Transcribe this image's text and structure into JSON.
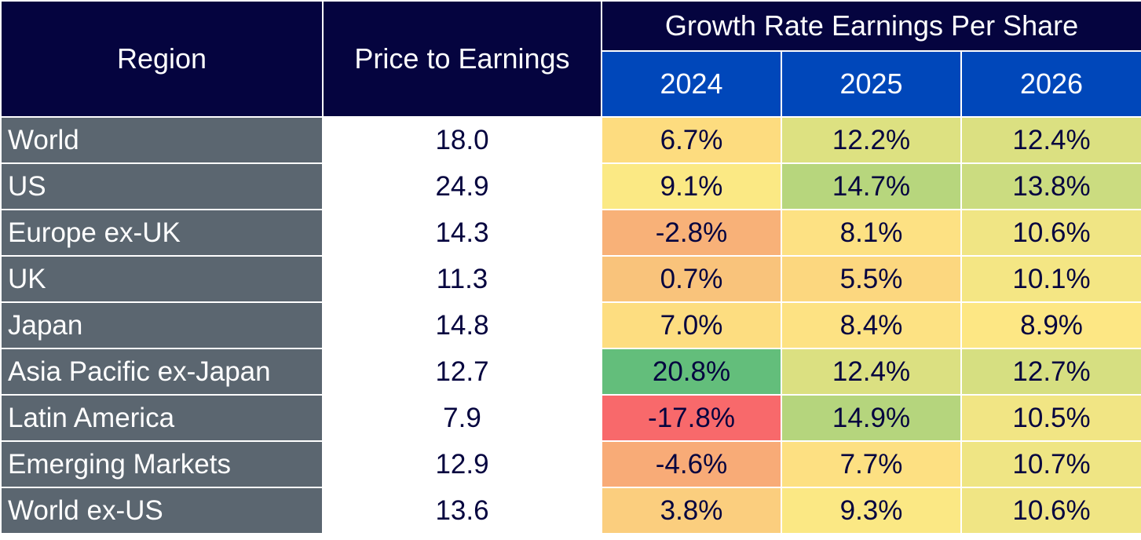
{
  "chart_data": {
    "type": "table",
    "headers": {
      "region": "Region",
      "pe": "Price to Earnings",
      "growth": "Growth Rate Earnings Per Share",
      "years": [
        "2024",
        "2025",
        "2026"
      ]
    },
    "rows": [
      {
        "region": "World",
        "pe": "18.0",
        "growth": [
          "6.7%",
          "12.2%",
          "12.4%"
        ],
        "values": [
          6.7,
          12.2,
          12.4
        ],
        "colors": [
          "#fddc7f",
          "#dde181",
          "#dbe081"
        ]
      },
      {
        "region": "US",
        "pe": "24.9",
        "growth": [
          "9.1%",
          "14.7%",
          "13.8%"
        ],
        "values": [
          9.1,
          14.7,
          13.8
        ],
        "colors": [
          "#fbe984",
          "#b7d67d",
          "#cbdc80"
        ]
      },
      {
        "region": "Europe ex-UK",
        "pe": "14.3",
        "growth": [
          "-2.8%",
          "8.1%",
          "10.6%"
        ],
        "values": [
          -2.8,
          8.1,
          10.6
        ],
        "colors": [
          "#f8b178",
          "#fde183",
          "#f0e584"
        ]
      },
      {
        "region": "UK",
        "pe": "11.3",
        "growth": [
          "0.7%",
          "5.5%",
          "10.1%"
        ],
        "values": [
          0.7,
          5.5,
          10.1
        ],
        "colors": [
          "#f9c37b",
          "#fcd77f",
          "#f4e684"
        ]
      },
      {
        "region": "Japan",
        "pe": "14.8",
        "growth": [
          "7.0%",
          "8.4%",
          "8.9%"
        ],
        "values": [
          7.0,
          8.4,
          8.9
        ],
        "colors": [
          "#fddd80",
          "#fde283",
          "#fde784"
        ]
      },
      {
        "region": "Asia  Pacific ex-Japan",
        "pe": "12.7",
        "growth": [
          "20.8%",
          "12.4%",
          "12.7%"
        ],
        "values": [
          20.8,
          12.4,
          12.7
        ],
        "colors": [
          "#63be7b",
          "#dbe081",
          "#d6df81"
        ]
      },
      {
        "region": "Latin America",
        "pe": "7.9",
        "growth": [
          "-17.8%",
          "14.9%",
          "10.5%"
        ],
        "values": [
          -17.8,
          14.9,
          10.5
        ],
        "colors": [
          "#f8696b",
          "#b5d57d",
          "#f1e584"
        ]
      },
      {
        "region": "Emerging Markets",
        "pe": "12.9",
        "growth": [
          "-4.6%",
          "7.7%",
          "10.7%"
        ],
        "values": [
          -4.6,
          7.7,
          10.7
        ],
        "colors": [
          "#f8ab77",
          "#fde082",
          "#efe584"
        ]
      },
      {
        "region": "World ex-US",
        "pe": "13.6",
        "growth": [
          "3.8%",
          "9.3%",
          "10.6%"
        ],
        "values": [
          3.8,
          9.3,
          10.6
        ],
        "colors": [
          "#fbce7e",
          "#fbe884",
          "#f0e584"
        ]
      }
    ]
  }
}
